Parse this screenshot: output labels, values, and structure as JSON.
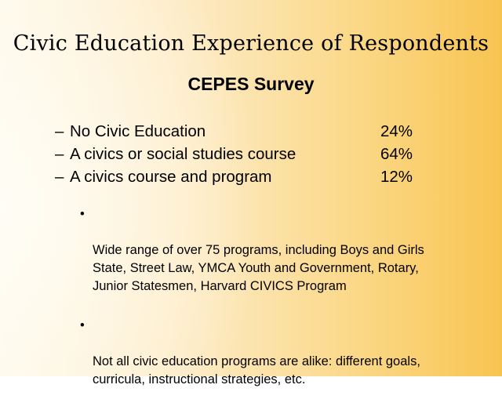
{
  "slide": {
    "title": "Civic Education Experience of Respondents",
    "subtitle": "CEPES Survey",
    "dash_glyph": "–",
    "bullet_glyph": "•",
    "items": [
      {
        "label": "No Civic Education",
        "value": "24%"
      },
      {
        "label": "A civics or social studies course",
        "value": "64%"
      },
      {
        "label": "A civics course and program",
        "value": "12%"
      }
    ],
    "bullets": [
      "Wide range of over 75 programs, including Boys and Girls\nState, Street Law, YMCA Youth and Government, Rotary,\nJunior Statesmen, Harvard CIVICS Program",
      "Not all civic education programs are alike: different goals,\ncurricula, instructional strategies, etc."
    ],
    "colors": {
      "background_light": "#fffaf0",
      "background_accent": "#f8c450"
    }
  }
}
